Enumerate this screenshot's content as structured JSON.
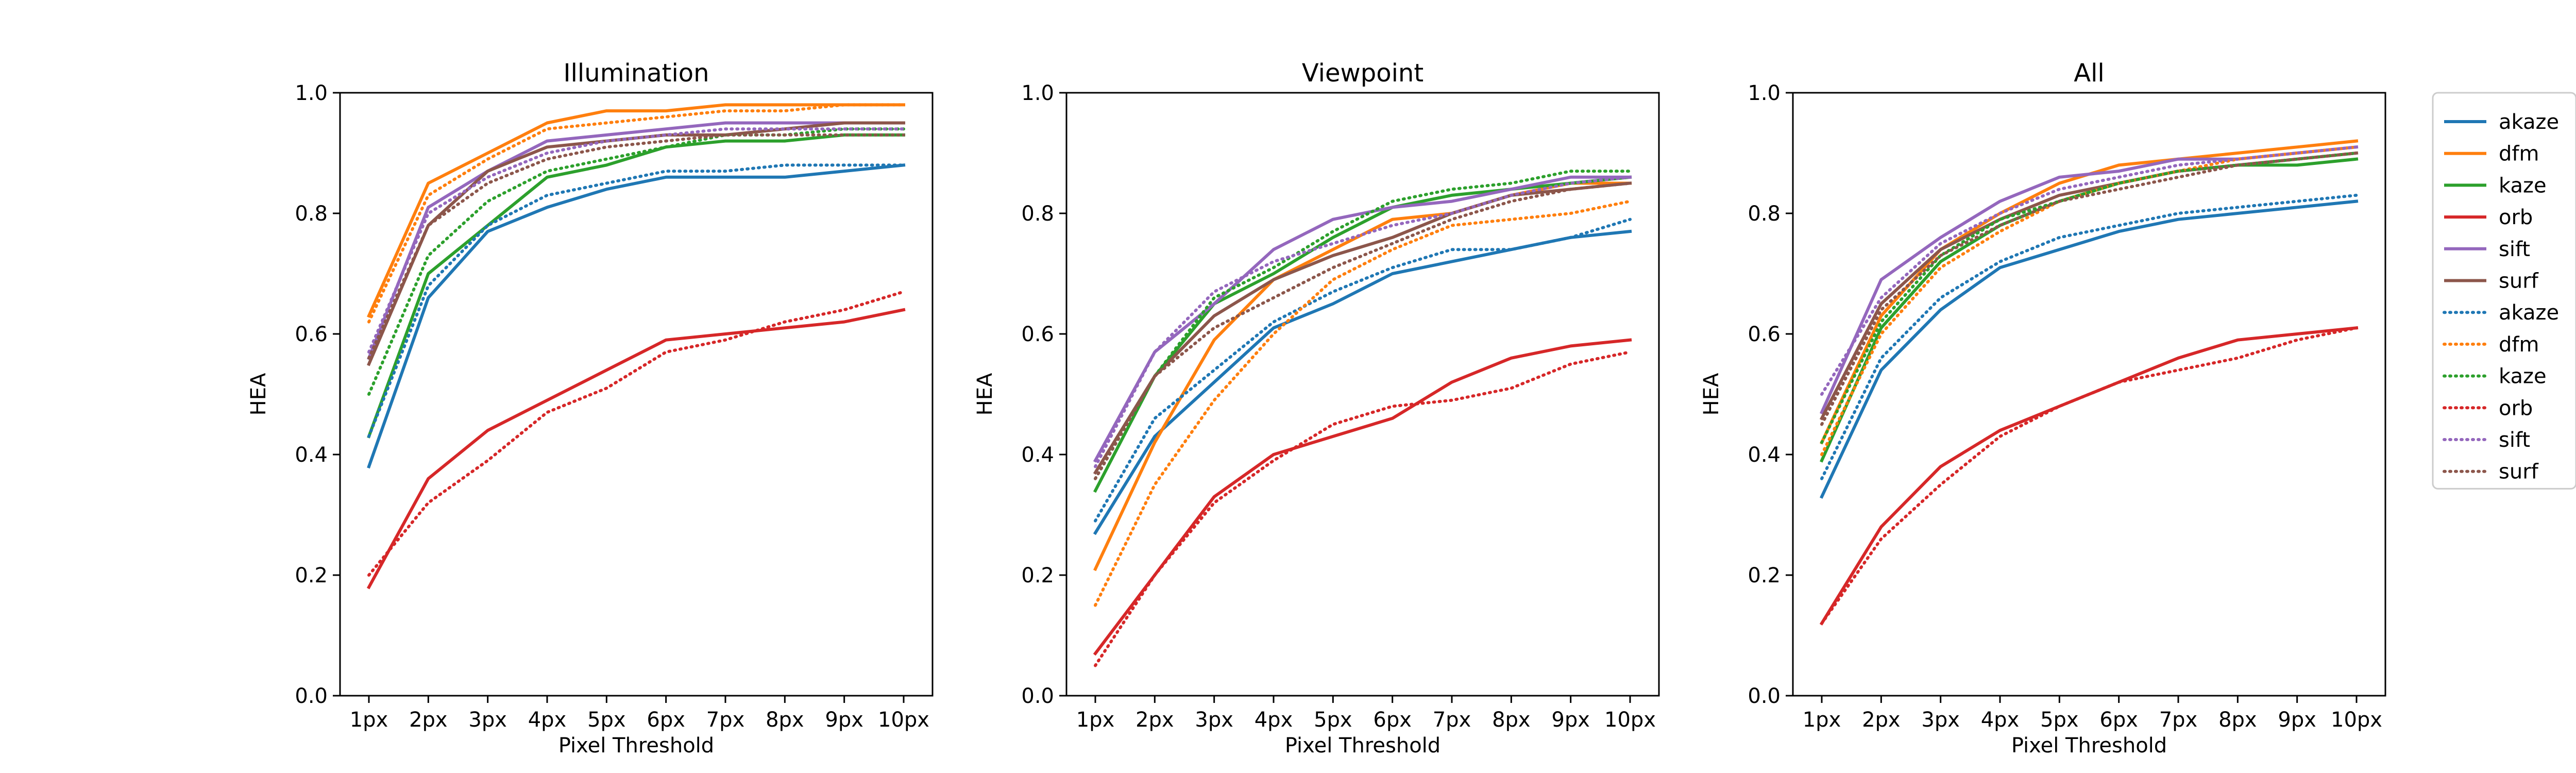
{
  "chart_data": [
    {
      "type": "line",
      "title": "Illumination",
      "xlabel": "Pixel Threshold",
      "ylabel": "HEA",
      "categories": [
        "1px",
        "2px",
        "3px",
        "4px",
        "5px",
        "6px",
        "7px",
        "8px",
        "9px",
        "10px"
      ],
      "ylim": [
        0,
        1.0
      ],
      "yticks": [
        "0.0",
        "0.2",
        "0.4",
        "0.6",
        "0.8",
        "1.0"
      ],
      "series": [
        {
          "name": "akaze",
          "style": "solid",
          "values": [
            0.38,
            0.66,
            0.77,
            0.81,
            0.84,
            0.86,
            0.86,
            0.86,
            0.87,
            0.88
          ]
        },
        {
          "name": "dfm",
          "style": "solid",
          "values": [
            0.63,
            0.85,
            0.9,
            0.95,
            0.97,
            0.97,
            0.98,
            0.98,
            0.98,
            0.98
          ]
        },
        {
          "name": "kaze",
          "style": "solid",
          "values": [
            0.43,
            0.7,
            0.78,
            0.86,
            0.88,
            0.91,
            0.92,
            0.92,
            0.93,
            0.93
          ]
        },
        {
          "name": "orb",
          "style": "solid",
          "values": [
            0.18,
            0.36,
            0.44,
            0.49,
            0.54,
            0.59,
            0.6,
            0.61,
            0.62,
            0.64
          ]
        },
        {
          "name": "sift",
          "style": "solid",
          "values": [
            0.56,
            0.81,
            0.87,
            0.92,
            0.93,
            0.94,
            0.95,
            0.95,
            0.95,
            0.95
          ]
        },
        {
          "name": "surf",
          "style": "solid",
          "values": [
            0.55,
            0.78,
            0.87,
            0.91,
            0.92,
            0.93,
            0.93,
            0.94,
            0.95,
            0.95
          ]
        },
        {
          "name": "akaze",
          "style": "dotted",
          "values": [
            0.43,
            0.68,
            0.78,
            0.83,
            0.85,
            0.87,
            0.87,
            0.88,
            0.88,
            0.88
          ]
        },
        {
          "name": "dfm",
          "style": "dotted",
          "values": [
            0.62,
            0.83,
            0.89,
            0.94,
            0.95,
            0.96,
            0.97,
            0.97,
            0.98,
            0.98
          ]
        },
        {
          "name": "kaze",
          "style": "dotted",
          "values": [
            0.5,
            0.73,
            0.82,
            0.87,
            0.89,
            0.91,
            0.93,
            0.93,
            0.94,
            0.94
          ]
        },
        {
          "name": "orb",
          "style": "dotted",
          "values": [
            0.2,
            0.32,
            0.39,
            0.47,
            0.51,
            0.57,
            0.59,
            0.62,
            0.64,
            0.67
          ]
        },
        {
          "name": "sift",
          "style": "dotted",
          "values": [
            0.57,
            0.8,
            0.86,
            0.9,
            0.92,
            0.93,
            0.94,
            0.94,
            0.94,
            0.94
          ]
        },
        {
          "name": "surf",
          "style": "dotted",
          "values": [
            0.56,
            0.78,
            0.85,
            0.89,
            0.91,
            0.92,
            0.93,
            0.93,
            0.93,
            0.93
          ]
        }
      ]
    },
    {
      "type": "line",
      "title": "Viewpoint",
      "xlabel": "Pixel Threshold",
      "ylabel": "HEA",
      "categories": [
        "1px",
        "2px",
        "3px",
        "4px",
        "5px",
        "6px",
        "7px",
        "8px",
        "9px",
        "10px"
      ],
      "ylim": [
        0,
        1.0
      ],
      "yticks": [
        "0.0",
        "0.2",
        "0.4",
        "0.6",
        "0.8",
        "1.0"
      ],
      "series": [
        {
          "name": "akaze",
          "style": "solid",
          "values": [
            0.27,
            0.43,
            0.52,
            0.61,
            0.65,
            0.7,
            0.72,
            0.74,
            0.76,
            0.77
          ]
        },
        {
          "name": "dfm",
          "style": "solid",
          "values": [
            0.21,
            0.42,
            0.59,
            0.69,
            0.74,
            0.79,
            0.8,
            0.83,
            0.85,
            0.85
          ]
        },
        {
          "name": "kaze",
          "style": "solid",
          "values": [
            0.34,
            0.53,
            0.65,
            0.7,
            0.76,
            0.81,
            0.83,
            0.84,
            0.85,
            0.86
          ]
        },
        {
          "name": "orb",
          "style": "solid",
          "values": [
            0.07,
            0.2,
            0.33,
            0.4,
            0.43,
            0.46,
            0.52,
            0.56,
            0.58,
            0.59
          ]
        },
        {
          "name": "sift",
          "style": "solid",
          "values": [
            0.39,
            0.57,
            0.65,
            0.74,
            0.79,
            0.81,
            0.82,
            0.84,
            0.86,
            0.86
          ]
        },
        {
          "name": "surf",
          "style": "solid",
          "values": [
            0.37,
            0.53,
            0.63,
            0.69,
            0.73,
            0.76,
            0.8,
            0.83,
            0.84,
            0.85
          ]
        },
        {
          "name": "akaze",
          "style": "dotted",
          "values": [
            0.29,
            0.46,
            0.54,
            0.62,
            0.67,
            0.71,
            0.74,
            0.74,
            0.76,
            0.79
          ]
        },
        {
          "name": "dfm",
          "style": "dotted",
          "values": [
            0.15,
            0.35,
            0.49,
            0.6,
            0.69,
            0.74,
            0.78,
            0.79,
            0.8,
            0.82
          ]
        },
        {
          "name": "kaze",
          "style": "dotted",
          "values": [
            0.36,
            0.53,
            0.66,
            0.71,
            0.77,
            0.82,
            0.84,
            0.85,
            0.87,
            0.87
          ]
        },
        {
          "name": "orb",
          "style": "dotted",
          "values": [
            0.05,
            0.2,
            0.32,
            0.39,
            0.45,
            0.48,
            0.49,
            0.51,
            0.55,
            0.57
          ]
        },
        {
          "name": "sift",
          "style": "dotted",
          "values": [
            0.38,
            0.57,
            0.67,
            0.72,
            0.75,
            0.78,
            0.8,
            0.83,
            0.85,
            0.86
          ]
        },
        {
          "name": "surf",
          "style": "dotted",
          "values": [
            0.36,
            0.53,
            0.61,
            0.66,
            0.71,
            0.75,
            0.79,
            0.82,
            0.84,
            0.85
          ]
        }
      ]
    },
    {
      "type": "line",
      "title": "All",
      "xlabel": "Pixel Threshold",
      "ylabel": "HEA",
      "categories": [
        "1px",
        "2px",
        "3px",
        "4px",
        "5px",
        "6px",
        "7px",
        "8px",
        "9px",
        "10px"
      ],
      "ylim": [
        0,
        1.0
      ],
      "yticks": [
        "0.0",
        "0.2",
        "0.4",
        "0.6",
        "0.8",
        "1.0"
      ],
      "series": [
        {
          "name": "akaze",
          "style": "solid",
          "values": [
            0.33,
            0.54,
            0.64,
            0.71,
            0.74,
            0.77,
            0.79,
            0.8,
            0.81,
            0.82
          ]
        },
        {
          "name": "dfm",
          "style": "solid",
          "values": [
            0.42,
            0.63,
            0.74,
            0.8,
            0.85,
            0.88,
            0.89,
            0.9,
            0.91,
            0.92
          ]
        },
        {
          "name": "kaze",
          "style": "solid",
          "values": [
            0.39,
            0.61,
            0.72,
            0.78,
            0.82,
            0.85,
            0.87,
            0.88,
            0.88,
            0.89
          ]
        },
        {
          "name": "orb",
          "style": "solid",
          "values": [
            0.12,
            0.28,
            0.38,
            0.44,
            0.48,
            0.52,
            0.56,
            0.59,
            0.6,
            0.61
          ]
        },
        {
          "name": "sift",
          "style": "solid",
          "values": [
            0.47,
            0.69,
            0.76,
            0.82,
            0.86,
            0.87,
            0.89,
            0.89,
            0.9,
            0.91
          ]
        },
        {
          "name": "surf",
          "style": "solid",
          "values": [
            0.46,
            0.65,
            0.74,
            0.79,
            0.83,
            0.85,
            0.87,
            0.88,
            0.89,
            0.9
          ]
        },
        {
          "name": "akaze",
          "style": "dotted",
          "values": [
            0.36,
            0.56,
            0.66,
            0.72,
            0.76,
            0.78,
            0.8,
            0.81,
            0.82,
            0.83
          ]
        },
        {
          "name": "dfm",
          "style": "dotted",
          "values": [
            0.4,
            0.6,
            0.71,
            0.77,
            0.82,
            0.85,
            0.87,
            0.89,
            0.9,
            0.91
          ]
        },
        {
          "name": "kaze",
          "style": "dotted",
          "values": [
            0.42,
            0.62,
            0.73,
            0.79,
            0.82,
            0.85,
            0.87,
            0.88,
            0.89,
            0.9
          ]
        },
        {
          "name": "orb",
          "style": "dotted",
          "values": [
            0.12,
            0.26,
            0.35,
            0.43,
            0.48,
            0.52,
            0.54,
            0.56,
            0.59,
            0.61
          ]
        },
        {
          "name": "sift",
          "style": "dotted",
          "values": [
            0.5,
            0.66,
            0.75,
            0.8,
            0.84,
            0.86,
            0.88,
            0.89,
            0.9,
            0.91
          ]
        },
        {
          "name": "surf",
          "style": "dotted",
          "values": [
            0.45,
            0.64,
            0.73,
            0.78,
            0.82,
            0.84,
            0.86,
            0.88,
            0.89,
            0.9
          ]
        }
      ]
    }
  ],
  "legend": {
    "placement": "outside-right",
    "entries": [
      {
        "name": "akaze",
        "style": "solid"
      },
      {
        "name": "dfm",
        "style": "solid"
      },
      {
        "name": "kaze",
        "style": "solid"
      },
      {
        "name": "orb",
        "style": "solid"
      },
      {
        "name": "sift",
        "style": "solid"
      },
      {
        "name": "surf",
        "style": "solid"
      },
      {
        "name": "akaze",
        "style": "dotted"
      },
      {
        "name": "dfm",
        "style": "dotted"
      },
      {
        "name": "kaze",
        "style": "dotted"
      },
      {
        "name": "orb",
        "style": "dotted"
      },
      {
        "name": "sift",
        "style": "dotted"
      },
      {
        "name": "surf",
        "style": "dotted"
      }
    ]
  },
  "colors": {
    "akaze": "#1f77b4",
    "dfm": "#ff7f0e",
    "kaze": "#2ca02c",
    "orb": "#d62728",
    "sift": "#9467bd",
    "surf": "#8c564b"
  }
}
